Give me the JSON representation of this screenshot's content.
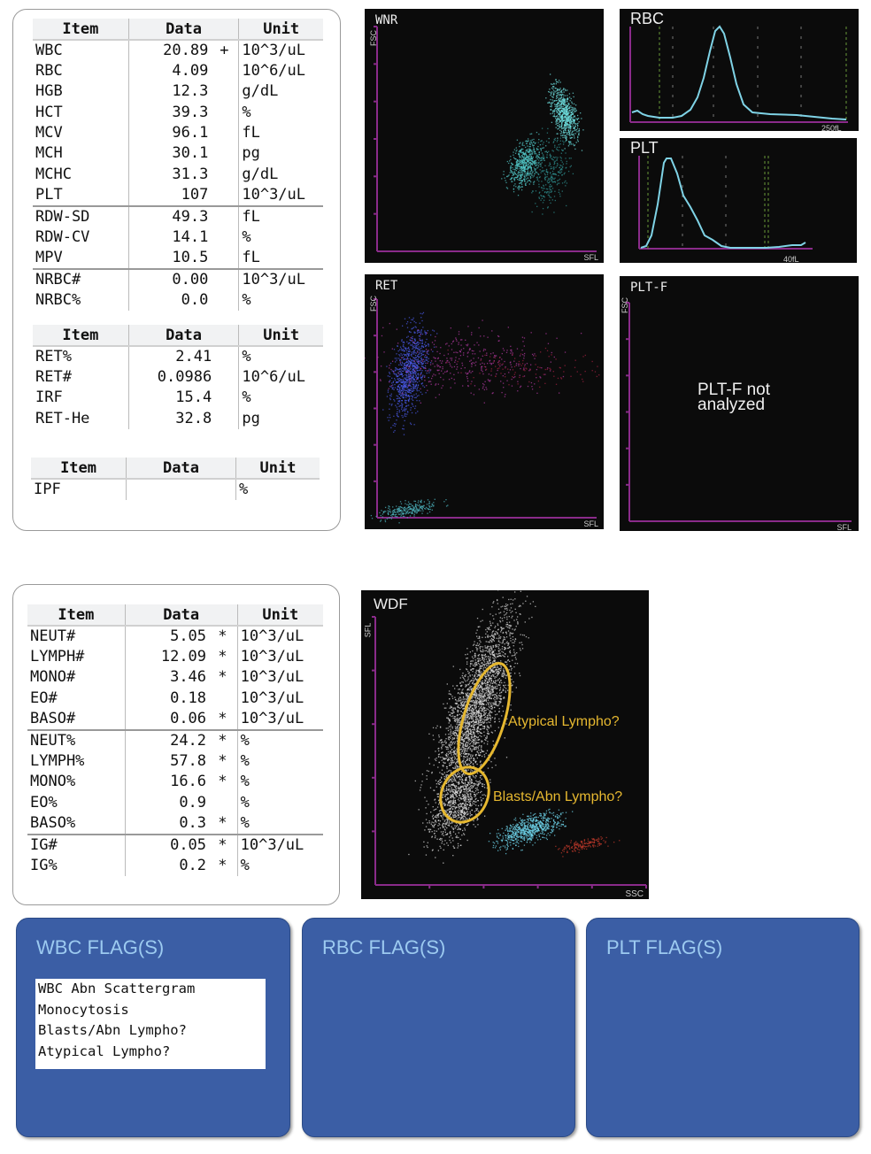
{
  "cbc_table": {
    "headers": [
      "Item",
      "Data",
      "Unit"
    ],
    "rows": [
      {
        "item": "WBC",
        "data": "20.89",
        "flag": "+",
        "unit": "10^3/uL"
      },
      {
        "item": "RBC",
        "data": "4.09",
        "flag": "",
        "unit": "10^6/uL"
      },
      {
        "item": "HGB",
        "data": "12.3",
        "flag": "",
        "unit": "g/dL"
      },
      {
        "item": "HCT",
        "data": "39.3",
        "flag": "",
        "unit": "%"
      },
      {
        "item": "MCV",
        "data": "96.1",
        "flag": "",
        "unit": "fL"
      },
      {
        "item": "MCH",
        "data": "30.1",
        "flag": "",
        "unit": "pg"
      },
      {
        "item": "MCHC",
        "data": "31.3",
        "flag": "",
        "unit": "g/dL"
      },
      {
        "item": "PLT",
        "data": "107",
        "flag": "",
        "unit": "10^3/uL"
      },
      {
        "item": "RDW-SD",
        "data": "49.3",
        "flag": "",
        "unit": "fL",
        "sep": true
      },
      {
        "item": "RDW-CV",
        "data": "14.1",
        "flag": "",
        "unit": "%"
      },
      {
        "item": "MPV",
        "data": "10.5",
        "flag": "",
        "unit": "fL"
      },
      {
        "item": "NRBC#",
        "data": "0.00",
        "flag": "",
        "unit": "10^3/uL",
        "sep": true
      },
      {
        "item": "NRBC%",
        "data": "0.0",
        "flag": "",
        "unit": "%"
      }
    ]
  },
  "ret_table": {
    "headers": [
      "Item",
      "Data",
      "Unit"
    ],
    "rows": [
      {
        "item": "RET%",
        "data": "2.41",
        "flag": "",
        "unit": "%"
      },
      {
        "item": "RET#",
        "data": "0.0986",
        "flag": "",
        "unit": "10^6/uL"
      },
      {
        "item": "IRF",
        "data": "15.4",
        "flag": "",
        "unit": "%"
      },
      {
        "item": "RET-He",
        "data": "32.8",
        "flag": "",
        "unit": "pg"
      }
    ]
  },
  "ipf_table": {
    "headers": [
      "Item",
      "Data",
      "Unit"
    ],
    "rows": [
      {
        "item": "IPF",
        "data": "",
        "flag": "",
        "unit": "%"
      }
    ]
  },
  "diff_table": {
    "headers": [
      "Item",
      "Data",
      "Unit"
    ],
    "rows": [
      {
        "item": "NEUT#",
        "data": "5.05",
        "flag": "*",
        "unit": "10^3/uL"
      },
      {
        "item": "LYMPH#",
        "data": "12.09",
        "flag": "*",
        "unit": "10^3/uL"
      },
      {
        "item": "MONO#",
        "data": "3.46",
        "flag": "*",
        "unit": "10^3/uL"
      },
      {
        "item": "EO#",
        "data": "0.18",
        "flag": "",
        "unit": "10^3/uL"
      },
      {
        "item": "BASO#",
        "data": "0.06",
        "flag": "*",
        "unit": "10^3/uL"
      },
      {
        "item": "NEUT%",
        "data": "24.2",
        "flag": "*",
        "unit": "%",
        "sep": true
      },
      {
        "item": "LYMPH%",
        "data": "57.8",
        "flag": "*",
        "unit": "%"
      },
      {
        "item": "MONO%",
        "data": "16.6",
        "flag": "*",
        "unit": "%"
      },
      {
        "item": "EO%",
        "data": "0.9",
        "flag": "",
        "unit": "%"
      },
      {
        "item": "BASO%",
        "data": "0.3",
        "flag": "*",
        "unit": "%"
      },
      {
        "item": "IG#",
        "data": "0.05",
        "flag": "*",
        "unit": "10^3/uL",
        "sep": true
      },
      {
        "item": "IG%",
        "data": "0.2",
        "flag": "*",
        "unit": "%"
      }
    ]
  },
  "plots": {
    "wnr": {
      "title": "WNR",
      "y_axis": "FSC",
      "x_axis": "SFL"
    },
    "rbc": {
      "title": "RBC",
      "x_max_label": "250fL"
    },
    "plt": {
      "title": "PLT",
      "x_max_label": "40fL"
    },
    "ret": {
      "title": "RET",
      "y_axis": "FSC",
      "x_axis": "SFL"
    },
    "pltf": {
      "title": "PLT-F",
      "y_axis": "FSC",
      "x_axis": "SFL",
      "message": "PLT-F not analyzed"
    },
    "wdf": {
      "title": "WDF",
      "y_axis": "SFL",
      "x_axis": "SSC",
      "annotations": [
        "Atypical Lympho?",
        "Blasts/Abn Lympho?"
      ]
    }
  },
  "flags": {
    "wbc": {
      "title": "WBC FLAG(S)",
      "items": [
        "WBC Abn Scattergram",
        "Monocytosis",
        "Blasts/Abn Lympho?",
        "Atypical Lympho?"
      ]
    },
    "rbc": {
      "title": "RBC FLAG(S)"
    },
    "plt": {
      "title": "PLT FLAG(S)"
    }
  },
  "colors": {
    "flag_panel": "#3b5ea5",
    "flag_title": "#9ccaf0",
    "axis": "#8a2b8a",
    "histogram": "#7fd3e6",
    "annotation": "#e6b830"
  }
}
